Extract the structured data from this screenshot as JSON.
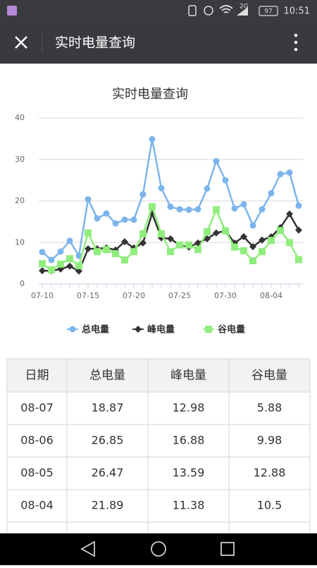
{
  "status_bar": {
    "network": "2G",
    "battery": "97",
    "time": "10:51"
  },
  "app_bar": {
    "title": "实时电量查询"
  },
  "chart_data": {
    "type": "line",
    "title": "实时电量查询",
    "categories": [
      "07-10",
      null,
      null,
      null,
      null,
      "07-15",
      null,
      null,
      null,
      null,
      "07-20",
      null,
      null,
      null,
      null,
      "07-25",
      null,
      null,
      null,
      null,
      "07-30",
      null,
      null,
      null,
      null,
      "08-04",
      null,
      null,
      null
    ],
    "series": [
      {
        "name": "总电量",
        "color": "#7cb5ec",
        "marker": "circle",
        "values": [
          7.7,
          5.8,
          7.8,
          10.4,
          6.8,
          20.4,
          15.8,
          17,
          14.6,
          15.5,
          15.5,
          21.6,
          34.9,
          23.1,
          18.6,
          18,
          17.9,
          18,
          23,
          29.6,
          25,
          18.2,
          19.2,
          14.1,
          18,
          21.89,
          26.47,
          26.85,
          18.87
        ]
      },
      {
        "name": "峰电量",
        "color": "#333333",
        "marker": "diamond",
        "values": [
          3.2,
          3.2,
          3.6,
          4.3,
          3.1,
          8.5,
          8.5,
          8.7,
          8.2,
          10.2,
          8.7,
          9.9,
          17,
          11.1,
          10.9,
          9.4,
          8.9,
          9.9,
          10.9,
          12.3,
          12.8,
          9.9,
          11.4,
          9,
          10.6,
          11.38,
          13.59,
          16.88,
          12.98
        ]
      },
      {
        "name": "谷电量",
        "color": "#90ed7d",
        "marker": "square",
        "values": [
          4.9,
          3.4,
          4.8,
          6.1,
          4.4,
          12.3,
          7.8,
          8.3,
          7.3,
          5.8,
          7.8,
          12.1,
          18.6,
          12.1,
          7.8,
          9.4,
          9.4,
          8.3,
          12.6,
          17.9,
          12.8,
          8.9,
          8,
          5.6,
          7.8,
          10.5,
          12.88,
          9.98,
          5.88
        ]
      }
    ],
    "ylim": [
      0,
      40
    ],
    "yticks": [
      0,
      10,
      20,
      30,
      40
    ],
    "grid": true,
    "legend": "bottom"
  },
  "table": {
    "header": [
      "日期",
      "总电量",
      "峰电量",
      "谷电量"
    ],
    "rows": [
      [
        "08-07",
        "18.87",
        "12.98",
        "5.88"
      ],
      [
        "08-06",
        "26.85",
        "16.88",
        "9.98"
      ],
      [
        "08-05",
        "26.47",
        "13.59",
        "12.88"
      ],
      [
        "08-04",
        "21.89",
        "11.38",
        "10.5"
      ]
    ]
  }
}
